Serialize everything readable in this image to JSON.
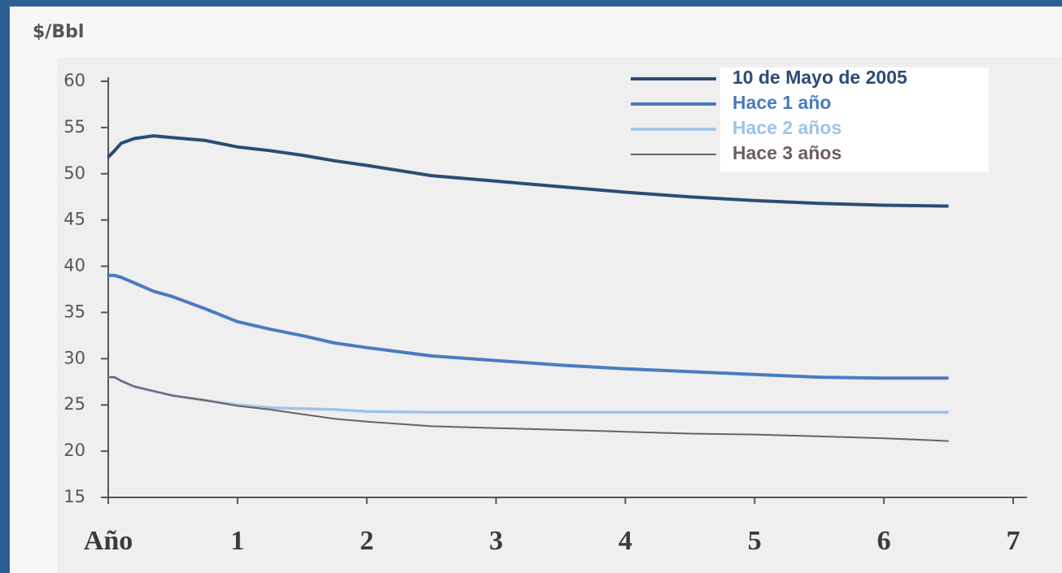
{
  "chart_data": {
    "type": "line",
    "y_label": "$/Bbl",
    "x": [
      0,
      0.05,
      0.1,
      0.2,
      0.35,
      0.5,
      0.75,
      1,
      1.25,
      1.5,
      1.75,
      2,
      2.5,
      3,
      3.5,
      4,
      4.5,
      5,
      5.5,
      6,
      6.5
    ],
    "series": [
      {
        "name": "10 de Mayo de 2005",
        "color": "#2b4c74",
        "width": 4,
        "values": [
          51.8,
          52.5,
          53.3,
          53.8,
          54.1,
          53.9,
          53.6,
          52.9,
          52.5,
          52.0,
          51.4,
          50.9,
          49.8,
          49.2,
          48.6,
          48.0,
          47.5,
          47.1,
          46.8,
          46.6,
          46.5
        ]
      },
      {
        "name": "Hace 1 año",
        "color": "#4a7bc0",
        "width": 4,
        "values": [
          39.0,
          39.0,
          38.8,
          38.2,
          37.3,
          36.7,
          35.4,
          34.0,
          33.2,
          32.5,
          31.7,
          31.2,
          30.3,
          29.8,
          29.3,
          28.9,
          28.6,
          28.3,
          28.0,
          27.9,
          27.9
        ]
      },
      {
        "name": "Hace 2 años",
        "color": "#9dc3e8",
        "width": 3.5,
        "values": [
          28.0,
          28.0,
          27.6,
          27.0,
          26.5,
          26.0,
          25.5,
          25.0,
          24.7,
          24.6,
          24.5,
          24.3,
          24.2,
          24.2,
          24.2,
          24.2,
          24.2,
          24.2,
          24.2,
          24.2,
          24.2
        ]
      },
      {
        "name": "Hace 3 años",
        "color": "#6e6060",
        "width": 2,
        "values": [
          28.0,
          28.0,
          27.6,
          27.0,
          26.5,
          26.0,
          25.5,
          24.9,
          24.5,
          24.0,
          23.5,
          23.2,
          22.7,
          22.5,
          22.3,
          22.1,
          21.9,
          21.8,
          21.6,
          21.4,
          21.1
        ]
      }
    ],
    "xlim": [
      0,
      7
    ],
    "xticks": [
      {
        "value": 0,
        "label": "Año"
      },
      1,
      2,
      3,
      4,
      5,
      6,
      7
    ],
    "ylim": [
      15,
      60
    ],
    "yticks": [
      15,
      20,
      25,
      30,
      35,
      40,
      45,
      50,
      55,
      60
    ],
    "legend": "top-right"
  }
}
